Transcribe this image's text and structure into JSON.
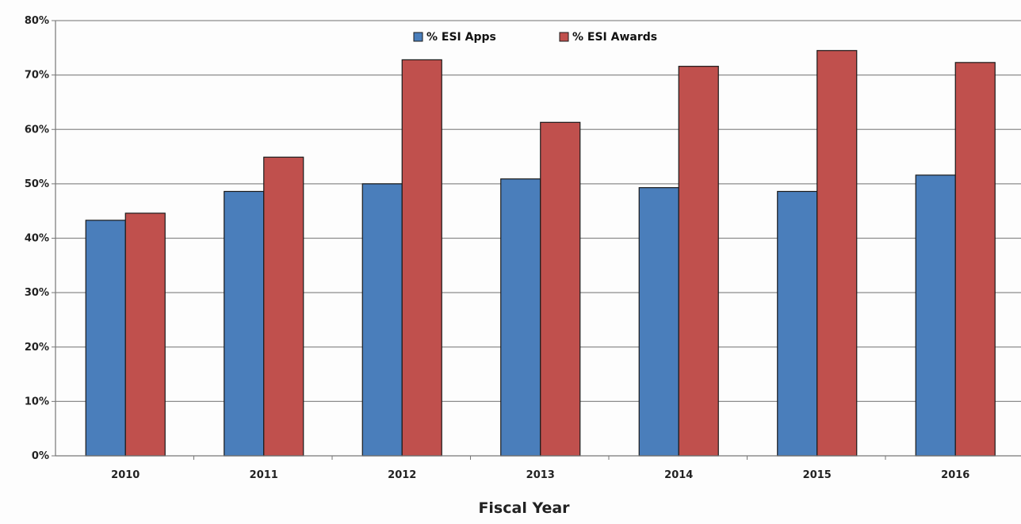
{
  "chart_data": {
    "type": "bar",
    "title": "",
    "xlabel": "Fiscal Year",
    "ylabel": "",
    "categories": [
      "2010",
      "2011",
      "2012",
      "2013",
      "2014",
      "2015",
      "2016"
    ],
    "series": [
      {
        "name": "% ESI Apps",
        "color": "#4a7ebb",
        "values": [
          43.3,
          48.6,
          50.0,
          50.9,
          49.3,
          48.6,
          51.6
        ]
      },
      {
        "name": "% ESI Awards",
        "color": "#c0504d",
        "values": [
          44.6,
          54.9,
          72.8,
          61.3,
          71.6,
          74.5,
          72.3
        ]
      }
    ],
    "ylim": [
      0,
      80
    ],
    "yticks": [
      "0%",
      "10%",
      "20%",
      "30%",
      "40%",
      "50%",
      "60%",
      "70%",
      "80%"
    ],
    "grid": true,
    "legend_position": "top"
  }
}
